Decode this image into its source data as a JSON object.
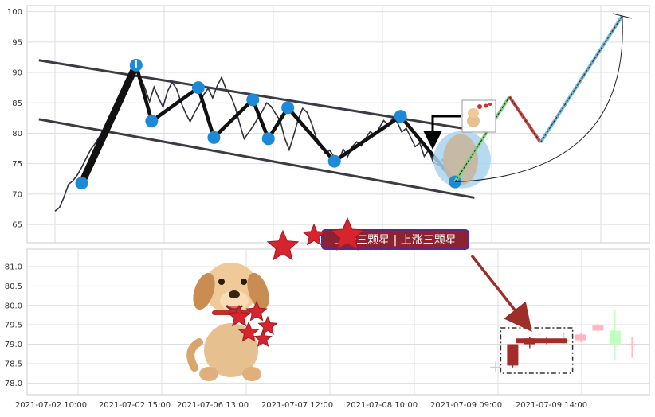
{
  "chart_data": [
    {
      "type": "line",
      "panel": "upper",
      "ylim": [
        62,
        101
      ],
      "y_ticks": [
        "65",
        "70",
        "75",
        "80",
        "85",
        "90",
        "95",
        "100"
      ],
      "grid": true,
      "price_path_y": [
        67.2,
        67.8,
        69.5,
        71.6,
        72.2,
        73.2,
        74.5,
        76.0,
        77.4,
        78.4,
        79.6,
        80.9,
        82.6,
        83.9,
        85.1,
        86.7,
        88.3,
        89.8,
        91.2,
        89.2,
        87.4,
        85.2,
        87.6,
        85.8,
        84.3,
        86.9,
        88.4,
        87.3,
        85.1,
        83.3,
        81.9,
        83.4,
        84.7,
        86.3,
        87.4,
        85.8,
        87.8,
        89.2,
        87.2,
        86.2,
        84.3,
        81.6,
        79.1,
        80.1,
        81.2,
        82.4,
        83.6,
        85.0,
        84.4,
        83.2,
        82.1,
        79.2,
        77.3,
        79.6,
        82.3,
        84.1,
        83.4,
        81.6,
        79.3,
        78.2,
        76.7,
        77.2,
        76.1,
        75.3,
        77.4,
        76.2,
        77.8,
        78.6,
        77.9,
        79.2,
        80.3,
        79.6,
        80.9,
        82.1,
        81.3,
        82.5,
        81.8,
        80.2,
        80.8,
        79.3,
        77.8,
        78.4,
        76.2,
        77.3,
        75.2,
        74.8,
        75.7,
        74.3,
        73.1,
        72.2
      ],
      "zigzag_pivots": [
        {
          "x": 0.04,
          "y": 71.8
        },
        {
          "x": 0.18,
          "y": 91.2
        },
        {
          "x": 0.22,
          "y": 82.0
        },
        {
          "x": 0.34,
          "y": 87.5
        },
        {
          "x": 0.38,
          "y": 79.3
        },
        {
          "x": 0.48,
          "y": 85.5
        },
        {
          "x": 0.52,
          "y": 79.1
        },
        {
          "x": 0.57,
          "y": 84.2
        },
        {
          "x": 0.69,
          "y": 75.4
        },
        {
          "x": 0.86,
          "y": 82.8
        },
        {
          "x": 1.0,
          "y": 72.0
        }
      ],
      "channel_upper": [
        {
          "x": -0.07,
          "y": 92.0
        },
        {
          "x": 1.05,
          "y": 80.5
        }
      ],
      "channel_lower": [
        {
          "x": -0.07,
          "y": 82.3
        },
        {
          "x": 1.05,
          "y": 69.4
        }
      ],
      "projection_path": [
        {
          "x": 1.0,
          "y": 72.0
        },
        {
          "x": 1.14,
          "y": 86.0
        },
        {
          "x": 1.22,
          "y": 78.5
        },
        {
          "x": 1.43,
          "y": 99.3
        }
      ],
      "projection_arc_end": {
        "x": 1.43,
        "y": 99.3
      }
    },
    {
      "type": "candlestick",
      "panel": "lower",
      "ylim": [
        77.7,
        81.45
      ],
      "y_ticks": [
        "78.0",
        "78.5",
        "79.0",
        "79.5",
        "80.0",
        "80.5",
        "81.0"
      ],
      "x_ticks": [
        "2021-07-02 10:00",
        "2021-07-02 15:00",
        "2021-07-06 13:00",
        "2021-07-07 12:00",
        "2021-07-08 10:00",
        "2021-07-09 09:00",
        "2021-07-09 14:00"
      ],
      "grid": true,
      "candles": [
        {
          "o": 78.42,
          "h": 78.55,
          "l": 78.28,
          "c": 78.4,
          "color": "#ffb6c1"
        },
        {
          "o": 78.45,
          "h": 79.0,
          "l": 78.4,
          "c": 79.0,
          "color": "#a52a2a"
        },
        {
          "o": 79.0,
          "h": 79.18,
          "l": 78.9,
          "c": 79.15,
          "color": "#a52a2a"
        },
        {
          "o": 79.13,
          "h": 79.2,
          "l": 79.0,
          "c": 79.05,
          "color": "#a52a2a"
        },
        {
          "o": 79.07,
          "h": 79.28,
          "l": 79.0,
          "c": 79.12,
          "color": "#98fb98"
        },
        {
          "o": 79.1,
          "h": 79.3,
          "l": 79.05,
          "c": 79.25,
          "color": "#ffb6c1"
        },
        {
          "o": 79.35,
          "h": 79.55,
          "l": 79.3,
          "c": 79.48,
          "color": "#ffb6c1"
        },
        {
          "o": 79.35,
          "h": 79.9,
          "l": 78.58,
          "c": 79.0,
          "color": "#c1ffc1"
        },
        {
          "o": 79.0,
          "h": 79.18,
          "l": 78.65,
          "c": 79.0,
          "color": "#ffb6c1"
        }
      ],
      "highlight_box": {
        "first_candle": 1,
        "last_candle": 4
      }
    }
  ],
  "banner": {
    "text": "上涨三颗星 | 上涨三颗星",
    "visible_text": "上涨三颗星 | 上涨三颗星",
    "bg": "#8b2332",
    "border": "#5b2a86"
  },
  "colors": {
    "price": "#2f3140",
    "zigzag": "#111111",
    "pivot": "#1c8ad6",
    "channel": "#3a3b47",
    "proj_red": "#c94a4a",
    "proj_blue": "#6fb3d6",
    "proj_green": "#7fcf7f",
    "arrow": "#9c2f28"
  }
}
